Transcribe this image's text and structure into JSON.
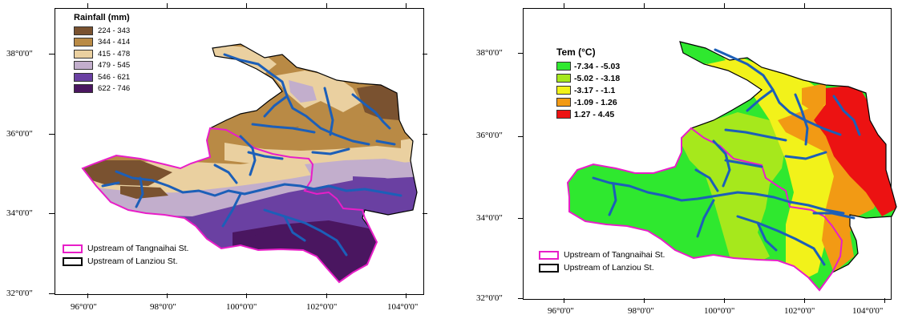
{
  "left_map": {
    "legend_title": "Rainfall (mm)",
    "classes": [
      {
        "label": "224 - 343",
        "color": "#7a5230"
      },
      {
        "label": "344 - 414",
        "color": "#b98a45"
      },
      {
        "label": "415 - 478",
        "color": "#ead0a0"
      },
      {
        "label": "479 - 545",
        "color": "#c2aecc"
      },
      {
        "label": "546 - 621",
        "color": "#6a40a2"
      },
      {
        "label": "622 - 746",
        "color": "#4a1660"
      }
    ],
    "lat_labels": [
      "38°0'0\"",
      "36°0'0\"",
      "34°0'0\"",
      "32°0'0\""
    ],
    "lon_labels": [
      "96°0'0\"",
      "98°0'0\"",
      "100°0'0\"",
      "102°0'0\"",
      "104°0'0\""
    ]
  },
  "right_map": {
    "legend_title": "Tem (°C)",
    "classes": [
      {
        "label": "-7.34 - -5.03",
        "color": "#2fe82f"
      },
      {
        "label": "-5.02 - -3.18",
        "color": "#a6e81c"
      },
      {
        "label": "-3.17 - -1.1",
        "color": "#f2f21a"
      },
      {
        "label": "-1.09 - 1.26",
        "color": "#f29a14"
      },
      {
        "label": "1.27 - 4.45",
        "color": "#ec1212"
      }
    ],
    "lat_labels": [
      "38°0'0\"",
      "36°0'0\"",
      "34°0'0\"",
      "32°0'0\""
    ],
    "lon_labels": [
      "96°0'0\"",
      "98°0'0\"",
      "100°0'0\"",
      "102°0'0\"",
      "104°0'0\""
    ]
  },
  "boundary_legend": {
    "tangnaihai": {
      "label": "Upstream of Tangnaihai St.",
      "color": "#e81ec8"
    },
    "lanziou": {
      "label": "Upstream of Lanziou St.",
      "color": "#000000"
    }
  },
  "river_color": "#1c5fb8"
}
